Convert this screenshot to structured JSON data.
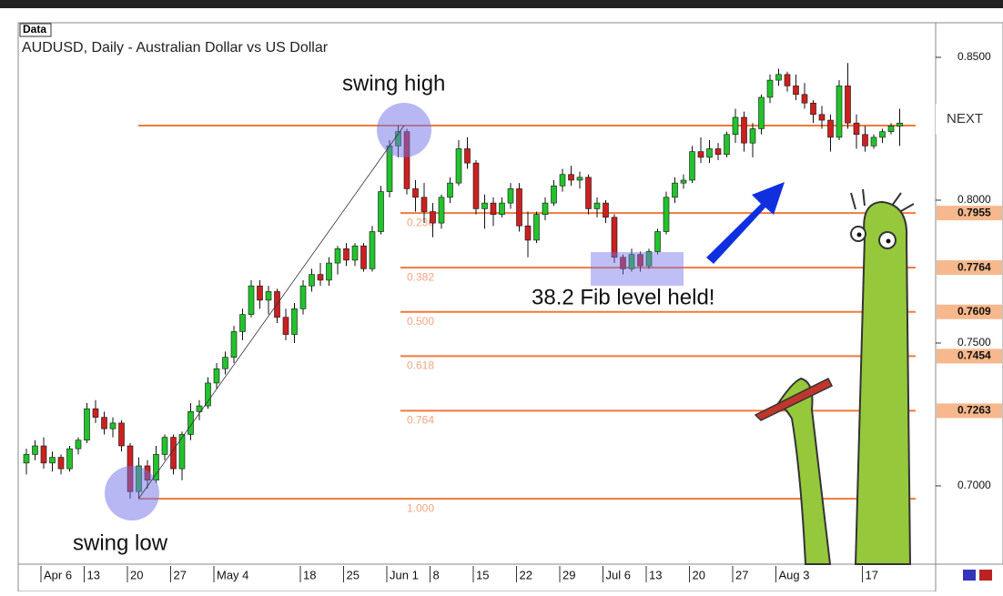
{
  "chart_data": {
    "type": "candlestick",
    "badge": "Data",
    "title": "AUDUSD, Daily - Australian Dollar vs US Dollar",
    "up_color": "#22c32c",
    "down_color": "#cc2020",
    "fib_color": "#f07a3c",
    "ylim": [
      0.6726,
      0.8621
    ],
    "yticks": [
      {
        "value": 0.85,
        "label": "0.8500"
      },
      {
        "value": 0.8,
        "label": "0.8000"
      },
      {
        "value": 0.75,
        "label": "0.7500"
      },
      {
        "value": 0.7,
        "label": "0.7000"
      }
    ],
    "fib_levels": [
      {
        "value": 0.8261,
        "label": null
      },
      {
        "value": 0.7955,
        "label": "0.236"
      },
      {
        "value": 0.7764,
        "label": "0.382"
      },
      {
        "value": 0.7609,
        "label": "0.500"
      },
      {
        "value": 0.7454,
        "label": "0.618"
      },
      {
        "value": 0.7263,
        "label": "0.764"
      },
      {
        "value": 0.6955,
        "label": "1.000"
      }
    ],
    "price_tags": [
      0.7955,
      0.7764,
      0.7609,
      0.7454,
      0.7263
    ],
    "annotations": {
      "swing_high": "swing high",
      "swing_low": "swing low",
      "fib_held": "38.2 Fib level held!"
    },
    "next_button": "NEXT",
    "categories": [
      null,
      null,
      "Apr 6",
      null,
      null,
      null,
      null,
      "13",
      null,
      null,
      null,
      null,
      "20",
      null,
      null,
      null,
      null,
      "27",
      null,
      null,
      null,
      null,
      "May 4",
      null,
      null,
      null,
      null,
      null,
      null,
      null,
      null,
      null,
      "18",
      null,
      null,
      null,
      null,
      "25",
      null,
      null,
      null,
      null,
      "Jun 1",
      null,
      null,
      null,
      null,
      "8",
      null,
      null,
      null,
      null,
      "15",
      null,
      null,
      null,
      null,
      "22",
      null,
      null,
      null,
      null,
      "29",
      null,
      null,
      null,
      null,
      "Jul 6",
      null,
      null,
      null,
      null,
      "13",
      null,
      null,
      null,
      null,
      "20",
      null,
      null,
      null,
      null,
      "27",
      null,
      null,
      null,
      null,
      "Aug 3",
      null,
      null,
      null,
      null,
      null,
      null,
      null,
      null,
      null,
      "17",
      null,
      null,
      null,
      null
    ],
    "ohlc": [
      [
        0.708,
        0.713,
        0.704,
        0.711
      ],
      [
        0.711,
        0.716,
        0.709,
        0.714
      ],
      [
        0.714,
        0.717,
        0.706,
        0.708
      ],
      [
        0.708,
        0.712,
        0.705,
        0.71
      ],
      [
        0.71,
        0.711,
        0.704,
        0.706
      ],
      [
        0.706,
        0.714,
        0.705,
        0.713
      ],
      [
        0.713,
        0.717,
        0.711,
        0.716
      ],
      [
        0.716,
        0.729,
        0.715,
        0.727
      ],
      [
        0.727,
        0.73,
        0.722,
        0.724
      ],
      [
        0.724,
        0.726,
        0.718,
        0.72
      ],
      [
        0.72,
        0.724,
        0.717,
        0.722
      ],
      [
        0.722,
        0.723,
        0.712,
        0.714
      ],
      [
        0.714,
        0.715,
        0.6955,
        0.698
      ],
      [
        0.698,
        0.71,
        0.6955,
        0.707
      ],
      [
        0.707,
        0.709,
        0.699,
        0.702
      ],
      [
        0.702,
        0.714,
        0.701,
        0.711
      ],
      [
        0.711,
        0.718,
        0.709,
        0.717
      ],
      [
        0.717,
        0.718,
        0.704,
        0.706
      ],
      [
        0.706,
        0.719,
        0.702,
        0.718
      ],
      [
        0.718,
        0.729,
        0.716,
        0.726
      ],
      [
        0.726,
        0.73,
        0.723,
        0.728
      ],
      [
        0.728,
        0.738,
        0.727,
        0.736
      ],
      [
        0.736,
        0.743,
        0.734,
        0.741
      ],
      [
        0.741,
        0.747,
        0.739,
        0.745
      ],
      [
        0.745,
        0.756,
        0.743,
        0.754
      ],
      [
        0.754,
        0.762,
        0.751,
        0.76
      ],
      [
        0.76,
        0.772,
        0.759,
        0.77
      ],
      [
        0.77,
        0.772,
        0.762,
        0.765
      ],
      [
        0.765,
        0.77,
        0.76,
        0.768
      ],
      [
        0.768,
        0.769,
        0.757,
        0.759
      ],
      [
        0.759,
        0.762,
        0.751,
        0.753
      ],
      [
        0.753,
        0.764,
        0.75,
        0.762
      ],
      [
        0.762,
        0.772,
        0.76,
        0.77
      ],
      [
        0.77,
        0.776,
        0.768,
        0.774
      ],
      [
        0.774,
        0.778,
        0.77,
        0.772
      ],
      [
        0.772,
        0.78,
        0.77,
        0.778
      ],
      [
        0.778,
        0.784,
        0.774,
        0.783
      ],
      [
        0.783,
        0.785,
        0.777,
        0.779
      ],
      [
        0.779,
        0.785,
        0.777,
        0.784
      ],
      [
        0.784,
        0.785,
        0.775,
        0.776
      ],
      [
        0.776,
        0.791,
        0.775,
        0.789
      ],
      [
        0.789,
        0.805,
        0.788,
        0.803
      ],
      [
        0.803,
        0.821,
        0.801,
        0.819
      ],
      [
        0.819,
        0.8261,
        0.815,
        0.824
      ],
      [
        0.824,
        0.825,
        0.802,
        0.804
      ],
      [
        0.804,
        0.807,
        0.796,
        0.801
      ],
      [
        0.801,
        0.806,
        0.792,
        0.796
      ],
      [
        0.796,
        0.799,
        0.787,
        0.792
      ],
      [
        0.792,
        0.802,
        0.79,
        0.801
      ],
      [
        0.801,
        0.808,
        0.799,
        0.806
      ],
      [
        0.806,
        0.821,
        0.805,
        0.818
      ],
      [
        0.818,
        0.822,
        0.811,
        0.813
      ],
      [
        0.813,
        0.814,
        0.795,
        0.797
      ],
      [
        0.797,
        0.802,
        0.79,
        0.799
      ],
      [
        0.799,
        0.801,
        0.791,
        0.795
      ],
      [
        0.795,
        0.801,
        0.794,
        0.799
      ],
      [
        0.799,
        0.806,
        0.797,
        0.804
      ],
      [
        0.804,
        0.806,
        0.789,
        0.791
      ],
      [
        0.791,
        0.796,
        0.78,
        0.786
      ],
      [
        0.786,
        0.796,
        0.785,
        0.795
      ],
      [
        0.795,
        0.801,
        0.793,
        0.799
      ],
      [
        0.799,
        0.807,
        0.798,
        0.805
      ],
      [
        0.805,
        0.811,
        0.803,
        0.809
      ],
      [
        0.809,
        0.812,
        0.805,
        0.807
      ],
      [
        0.807,
        0.81,
        0.804,
        0.808
      ],
      [
        0.808,
        0.809,
        0.795,
        0.797
      ],
      [
        0.797,
        0.801,
        0.794,
        0.799
      ],
      [
        0.799,
        0.8,
        0.792,
        0.794
      ],
      [
        0.794,
        0.795,
        0.778,
        0.78
      ],
      [
        0.78,
        0.781,
        0.774,
        0.776
      ],
      [
        0.776,
        0.783,
        0.775,
        0.781
      ],
      [
        0.781,
        0.782,
        0.775,
        0.777
      ],
      [
        0.777,
        0.783,
        0.776,
        0.782
      ],
      [
        0.782,
        0.79,
        0.781,
        0.789
      ],
      [
        0.789,
        0.803,
        0.788,
        0.801
      ],
      [
        0.801,
        0.808,
        0.799,
        0.806
      ],
      [
        0.806,
        0.809,
        0.804,
        0.807
      ],
      [
        0.807,
        0.819,
        0.806,
        0.817
      ],
      [
        0.817,
        0.822,
        0.813,
        0.815
      ],
      [
        0.815,
        0.821,
        0.813,
        0.818
      ],
      [
        0.818,
        0.82,
        0.814,
        0.816
      ],
      [
        0.816,
        0.824,
        0.815,
        0.823
      ],
      [
        0.823,
        0.832,
        0.82,
        0.829
      ],
      [
        0.829,
        0.831,
        0.817,
        0.82
      ],
      [
        0.82,
        0.827,
        0.815,
        0.825
      ],
      [
        0.825,
        0.837,
        0.823,
        0.836
      ],
      [
        0.836,
        0.844,
        0.834,
        0.842
      ],
      [
        0.842,
        0.846,
        0.84,
        0.844
      ],
      [
        0.844,
        0.845,
        0.838,
        0.84
      ],
      [
        0.84,
        0.844,
        0.835,
        0.837
      ],
      [
        0.837,
        0.841,
        0.832,
        0.834
      ],
      [
        0.834,
        0.835,
        0.827,
        0.83
      ],
      [
        0.83,
        0.833,
        0.825,
        0.828
      ],
      [
        0.828,
        0.83,
        0.817,
        0.822
      ],
      [
        0.822,
        0.842,
        0.821,
        0.84
      ],
      [
        0.84,
        0.848,
        0.825,
        0.827
      ],
      [
        0.827,
        0.83,
        0.818,
        0.823
      ],
      [
        0.823,
        0.826,
        0.817,
        0.819
      ],
      [
        0.819,
        0.823,
        0.818,
        0.822
      ],
      [
        0.822,
        0.825,
        0.82,
        0.824
      ],
      [
        0.824,
        0.827,
        0.823,
        0.826
      ],
      [
        0.826,
        0.832,
        0.819,
        0.827
      ]
    ]
  }
}
